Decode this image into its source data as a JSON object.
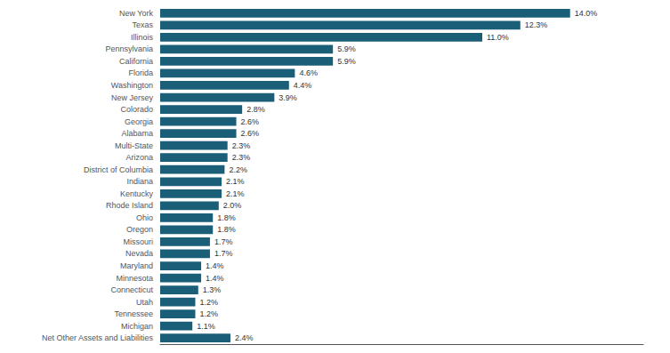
{
  "chart_data": {
    "type": "bar",
    "orientation": "horizontal",
    "categories": [
      "Net Other Assets and Liabilities",
      "Michigan",
      "Tennessee",
      "Utah",
      "Connecticut",
      "Minnesota",
      "Maryland",
      "Nevada",
      "Missouri",
      "Oregon",
      "Ohio",
      "Rhode Island",
      "Kentucky",
      "Indiana",
      "District of Columbia",
      "Arizona",
      "Multi-State",
      "Alabama",
      "Georgia",
      "Colorado",
      "New Jersey",
      "Washington",
      "Florida",
      "California",
      "Pennsylvania",
      "Illinois",
      "Texas",
      "New York"
    ],
    "values": [
      2.4,
      1.1,
      1.2,
      1.2,
      1.3,
      1.4,
      1.4,
      1.7,
      1.7,
      1.8,
      1.8,
      2.0,
      2.1,
      2.1,
      2.2,
      2.3,
      2.3,
      2.6,
      2.6,
      2.8,
      3.9,
      4.4,
      4.6,
      5.9,
      5.9,
      11.0,
      12.3,
      14.0
    ],
    "value_labels": [
      "2.4%",
      "1.1%",
      "1.2%",
      "1.2%",
      "1.3%",
      "1.4%",
      "1.4%",
      "1.7%",
      "1.7%",
      "1.8%",
      "1.8%",
      "2.0%",
      "2.1%",
      "2.1%",
      "2.2%",
      "2.3%",
      "2.3%",
      "2.6%",
      "2.6%",
      "2.8%",
      "3.9%",
      "4.4%",
      "4.6%",
      "5.9%",
      "5.9%",
      "11.0%",
      "12.3%",
      "14.0%"
    ],
    "color": "#1b5e78",
    "xlim": [
      0,
      16.5
    ],
    "data_labels": true,
    "tick_labels": "y",
    "grid": false
  }
}
